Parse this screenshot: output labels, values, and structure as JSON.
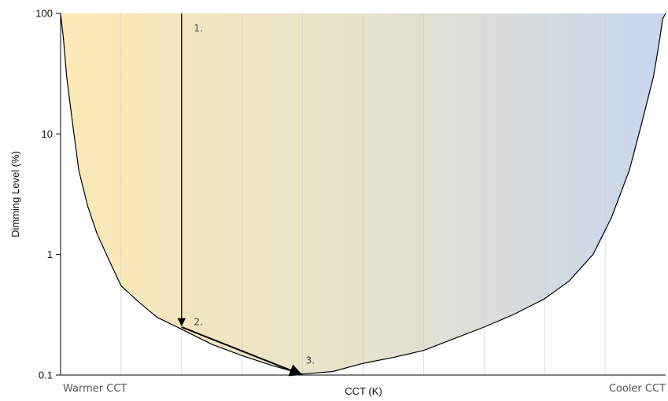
{
  "chart_data": {
    "type": "area",
    "title": "",
    "xlabel": "CCT (K)",
    "ylabel": "Dimming Level (%)",
    "x_scale": "categorical-gradient",
    "y_scale": "log",
    "ylim": [
      0.1,
      100
    ],
    "yticks": [
      "0.1",
      "1",
      "10",
      "100"
    ],
    "x_end_labels": {
      "left": "Warmer CCT",
      "right": "Cooler CCT"
    },
    "grid": {
      "vertical": true,
      "horizontal": false
    },
    "gradient_colors": {
      "warm": "#fde9b5",
      "mid": "#e6e2cc",
      "cool": "#c8d6ee"
    },
    "boundary": {
      "x": [
        0.0,
        0.005,
        0.01,
        0.02,
        0.03,
        0.045,
        0.06,
        0.08,
        0.1,
        0.13,
        0.16,
        0.2,
        0.25,
        0.3,
        0.35,
        0.4,
        0.45,
        0.5,
        0.55,
        0.6,
        0.65,
        0.7,
        0.75,
        0.8,
        0.84,
        0.88,
        0.91,
        0.94,
        0.96,
        0.98,
        0.99,
        0.995,
        1.0
      ],
      "y": [
        100,
        60,
        30,
        12,
        5,
        2.5,
        1.5,
        0.9,
        0.55,
        0.4,
        0.3,
        0.24,
        0.18,
        0.145,
        0.12,
        0.102,
        0.107,
        0.125,
        0.14,
        0.16,
        0.2,
        0.25,
        0.32,
        0.43,
        0.6,
        1.0,
        2.0,
        5.0,
        12,
        30,
        60,
        90,
        100
      ]
    },
    "path": {
      "x": [
        0.2,
        0.2,
        0.4
      ],
      "y": [
        100,
        0.25,
        0.1
      ]
    },
    "annotations": [
      {
        "text": "1.",
        "x": 0.215,
        "y": 75
      },
      {
        "text": "2.",
        "x": 0.215,
        "y": 0.275
      },
      {
        "text": "3.",
        "x": 0.4,
        "y": 0.132
      }
    ]
  }
}
